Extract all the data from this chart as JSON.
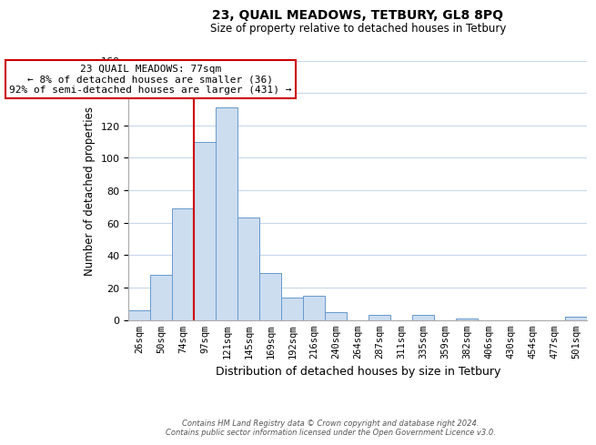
{
  "title": "23, QUAIL MEADOWS, TETBURY, GL8 8PQ",
  "subtitle": "Size of property relative to detached houses in Tetbury",
  "xlabel": "Distribution of detached houses by size in Tetbury",
  "ylabel": "Number of detached properties",
  "bar_labels": [
    "26sqm",
    "50sqm",
    "74sqm",
    "97sqm",
    "121sqm",
    "145sqm",
    "169sqm",
    "192sqm",
    "216sqm",
    "240sqm",
    "264sqm",
    "287sqm",
    "311sqm",
    "335sqm",
    "359sqm",
    "382sqm",
    "406sqm",
    "430sqm",
    "454sqm",
    "477sqm",
    "501sqm"
  ],
  "bar_values": [
    6,
    28,
    69,
    110,
    131,
    63,
    29,
    14,
    15,
    5,
    0,
    3,
    0,
    3,
    0,
    1,
    0,
    0,
    0,
    0,
    2
  ],
  "bar_color": "#ccddf0",
  "bar_edge_color": "#6699cc",
  "highlight_line_color": "#cc0000",
  "ylim": [
    0,
    160
  ],
  "yticks": [
    0,
    20,
    40,
    60,
    80,
    100,
    120,
    140,
    160
  ],
  "annotation_title": "23 QUAIL MEADOWS: 77sqm",
  "annotation_line1": "← 8% of detached houses are smaller (36)",
  "annotation_line2": "92% of semi-detached houses are larger (431) →",
  "annotation_box_color": "#ffffff",
  "annotation_box_edge": "#cc0000",
  "footer_line1": "Contains HM Land Registry data © Crown copyright and database right 2024.",
  "footer_line2": "Contains public sector information licensed under the Open Government Licence v3.0.",
  "background_color": "#ffffff",
  "grid_color": "#c8d8ec"
}
